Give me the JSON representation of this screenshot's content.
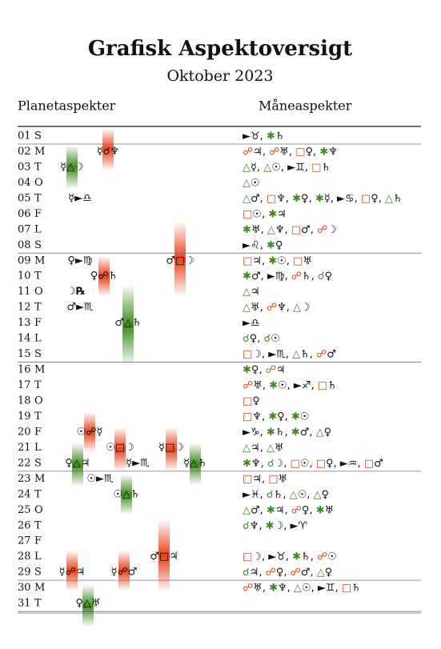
{
  "header": {
    "title": "Grafisk Aspektoversigt",
    "subtitle": "Oktober 2023",
    "left_column": "Planetaspekter",
    "right_column": "Måneaspekter"
  },
  "rows": [
    {
      "day": "01",
      "weekday": "S",
      "planet": [],
      "moon": [
        "►♉",
        "✱♄"
      ]
    },
    {
      "day": "02",
      "weekday": "M",
      "planet": [
        "☿☌♆"
      ],
      "moon": [
        "☍♃",
        "☍♅",
        "□♀",
        "✱♆"
      ]
    },
    {
      "day": "03",
      "weekday": "T",
      "planet": [
        "☿△☽"
      ],
      "moon": [
        "△☿",
        "△☉",
        "►♊",
        "□♄"
      ]
    },
    {
      "day": "04",
      "weekday": "O",
      "planet": [],
      "moon": [
        "△☉"
      ]
    },
    {
      "day": "05",
      "weekday": "T",
      "planet": [
        "☿►♎"
      ],
      "moon": [
        "△♂",
        "□♆",
        "✱♀",
        "✱☿",
        "►♋",
        "□♀",
        "△♄"
      ]
    },
    {
      "day": "06",
      "weekday": "F",
      "planet": [],
      "moon": [
        "□☉",
        "✱♃"
      ]
    },
    {
      "day": "07",
      "weekday": "L",
      "planet": [],
      "moon": [
        "✱♅",
        "△♆",
        "□♂",
        "☍☽"
      ]
    },
    {
      "day": "08",
      "weekday": "S",
      "planet": [],
      "moon": [
        "►♌",
        "✱♀"
      ]
    },
    {
      "day": "09",
      "weekday": "M",
      "planet": [
        "♀►♍",
        "♂□☽"
      ],
      "moon": [
        "□♃",
        "✱☉",
        "□♅"
      ]
    },
    {
      "day": "10",
      "weekday": "T",
      "planet": [
        "♀☍♄"
      ],
      "moon": [
        "✱♂",
        "►♍",
        "☍♄",
        "☌♀"
      ]
    },
    {
      "day": "11",
      "weekday": "O",
      "planet": [
        "☽℞"
      ],
      "moon": [
        "△♃"
      ]
    },
    {
      "day": "12",
      "weekday": "T",
      "planet": [
        "♂►♏"
      ],
      "moon": [
        "△♅",
        "☍♆",
        "△☽"
      ]
    },
    {
      "day": "13",
      "weekday": "F",
      "planet": [
        "♂△♄"
      ],
      "moon": [
        "►♎"
      ]
    },
    {
      "day": "14",
      "weekday": "L",
      "planet": [],
      "moon": [
        "☌♀",
        "☌☉"
      ]
    },
    {
      "day": "15",
      "weekday": "S",
      "planet": [],
      "moon": [
        "□☽",
        "►♏",
        "△♄",
        "☍♂"
      ]
    },
    {
      "day": "16",
      "weekday": "M",
      "planet": [],
      "moon": [
        "✱♀",
        "☍♃"
      ]
    },
    {
      "day": "17",
      "weekday": "T",
      "planet": [],
      "moon": [
        "☍♅",
        "✱☉",
        "►♐",
        "□♄"
      ]
    },
    {
      "day": "18",
      "weekday": "O",
      "planet": [],
      "moon": [
        "□♀"
      ]
    },
    {
      "day": "19",
      "weekday": "T",
      "planet": [],
      "moon": [
        "□♆",
        "✱♀",
        "✱☉"
      ]
    },
    {
      "day": "20",
      "weekday": "F",
      "planet": [
        "☉☍☿"
      ],
      "moon": [
        "►♑",
        "✱♄",
        "✱♂",
        "△♀"
      ]
    },
    {
      "day": "21",
      "weekday": "L",
      "planet": [
        "☉□☽",
        "☿□☽"
      ],
      "moon": [
        "△♃",
        "△♅"
      ]
    },
    {
      "day": "22",
      "weekday": "S",
      "planet": [
        "♀△♃",
        "☿►♏",
        "☿△♄"
      ],
      "moon": [
        "✱♆",
        "☌☽",
        "□☉",
        "□♀",
        "►♒",
        "□♂"
      ]
    },
    {
      "day": "23",
      "weekday": "M",
      "planet": [
        "☉►♏"
      ],
      "moon": [
        "□♃",
        "□♅"
      ]
    },
    {
      "day": "24",
      "weekday": "T",
      "planet": [
        "☉△♄"
      ],
      "moon": [
        "►♓",
        "☌♄",
        "△☉",
        "△♀"
      ]
    },
    {
      "day": "25",
      "weekday": "O",
      "planet": [],
      "moon": [
        "△♂",
        "✱♃",
        "☍♀",
        "✱♅"
      ]
    },
    {
      "day": "26",
      "weekday": "T",
      "planet": [],
      "moon": [
        "☌♆",
        "✱☽",
        "►♈"
      ]
    },
    {
      "day": "27",
      "weekday": "F",
      "planet": [],
      "moon": []
    },
    {
      "day": "28",
      "weekday": "L",
      "planet": [
        "♂□♃"
      ],
      "moon": [
        "□☽",
        "►♉",
        "✱♄",
        "☍☉"
      ]
    },
    {
      "day": "29",
      "weekday": "S",
      "planet": [
        "☿☍♃",
        "☿☍♂"
      ],
      "moon": [
        "☌♃",
        "☍♀",
        "☍♂",
        "△♀"
      ]
    },
    {
      "day": "30",
      "weekday": "M",
      "planet": [],
      "moon": [
        "☍♅",
        "✱♆",
        "△☉",
        "►♊",
        "□♄"
      ]
    },
    {
      "day": "31",
      "weekday": "T",
      "planet": [
        "♀△♅"
      ],
      "moon": []
    }
  ]
}
